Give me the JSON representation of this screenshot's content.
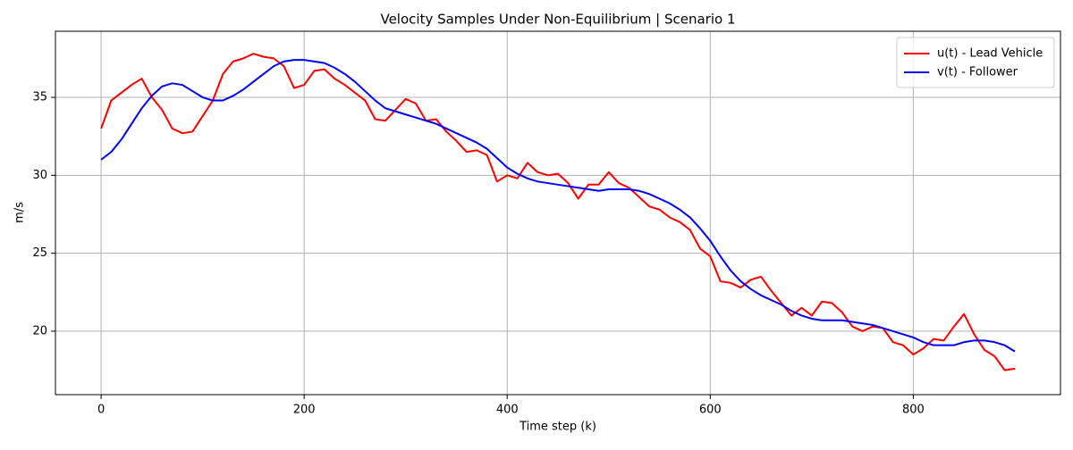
{
  "chart_data": {
    "type": "line",
    "title": "Velocity Samples Under Non-Equilibrium | Scenario 1",
    "x_label": "Time step (k)",
    "y_label": "m/s",
    "x": [
      0,
      10,
      20,
      30,
      40,
      50,
      60,
      70,
      80,
      90,
      100,
      110,
      120,
      130,
      140,
      150,
      160,
      170,
      180,
      190,
      200,
      210,
      220,
      230,
      240,
      250,
      260,
      270,
      280,
      290,
      300,
      310,
      320,
      330,
      340,
      350,
      360,
      370,
      380,
      390,
      400,
      410,
      420,
      430,
      440,
      450,
      460,
      470,
      480,
      490,
      500,
      510,
      520,
      530,
      540,
      550,
      560,
      570,
      580,
      590,
      600,
      610,
      620,
      630,
      640,
      650,
      660,
      670,
      680,
      690,
      700,
      710,
      720,
      730,
      740,
      750,
      760,
      770,
      780,
      790,
      800,
      810,
      820,
      830,
      840,
      850,
      860,
      870,
      880,
      890,
      900
    ],
    "series": [
      {
        "name": "u(t) - Lead Vehicle",
        "color": "#ff0000",
        "values": [
          33.0,
          34.8,
          35.3,
          35.8,
          36.2,
          35.0,
          34.2,
          33.0,
          32.7,
          32.8,
          33.8,
          34.8,
          36.5,
          37.3,
          37.5,
          37.8,
          37.6,
          37.5,
          37.0,
          35.6,
          35.8,
          36.7,
          36.8,
          36.2,
          35.8,
          35.3,
          34.8,
          33.6,
          33.5,
          34.2,
          34.9,
          34.6,
          33.5,
          33.6,
          32.8,
          32.2,
          31.5,
          31.6,
          31.3,
          29.6,
          30.0,
          29.8,
          30.8,
          30.2,
          30.0,
          30.1,
          29.5,
          28.5,
          29.4,
          29.4,
          30.2,
          29.5,
          29.2,
          28.6,
          28.0,
          27.8,
          27.3,
          27.0,
          26.5,
          25.3,
          24.8,
          23.2,
          23.1,
          22.8,
          23.3,
          23.5,
          22.6,
          21.8,
          21.0,
          21.5,
          21.0,
          21.9,
          21.8,
          21.2,
          20.3,
          20.0,
          20.3,
          20.2,
          19.3,
          19.1,
          18.5,
          18.9,
          19.5,
          19.4,
          20.3,
          21.1,
          19.8,
          18.8,
          18.4,
          17.5,
          17.6
        ]
      },
      {
        "name": "v(t) - Follower",
        "color": "#0000ff",
        "values": [
          31.0,
          31.5,
          32.3,
          33.3,
          34.3,
          35.1,
          35.7,
          35.9,
          35.8,
          35.4,
          35.0,
          34.8,
          34.8,
          35.1,
          35.5,
          36.0,
          36.5,
          37.0,
          37.3,
          37.4,
          37.4,
          37.3,
          37.2,
          36.9,
          36.5,
          36.0,
          35.4,
          34.8,
          34.3,
          34.1,
          33.9,
          33.7,
          33.5,
          33.3,
          33.0,
          32.7,
          32.4,
          32.1,
          31.7,
          31.1,
          30.5,
          30.1,
          29.8,
          29.6,
          29.5,
          29.4,
          29.3,
          29.2,
          29.1,
          29.0,
          29.1,
          29.1,
          29.1,
          29.0,
          28.8,
          28.5,
          28.2,
          27.8,
          27.3,
          26.6,
          25.8,
          24.8,
          23.9,
          23.2,
          22.7,
          22.3,
          22.0,
          21.7,
          21.3,
          21.0,
          20.8,
          20.7,
          20.7,
          20.7,
          20.6,
          20.5,
          20.4,
          20.2,
          20.0,
          19.8,
          19.6,
          19.3,
          19.1,
          19.1,
          19.1,
          19.3,
          19.4,
          19.4,
          19.3,
          19.1,
          18.7
        ]
      }
    ],
    "xlim": [
      -45,
      945
    ],
    "ylim": [
      15.93,
      39.24
    ],
    "xticks": [
      0,
      200,
      400,
      600,
      800
    ],
    "yticks": [
      20,
      25,
      30,
      35
    ],
    "grid": true,
    "legend": "upper right"
  }
}
